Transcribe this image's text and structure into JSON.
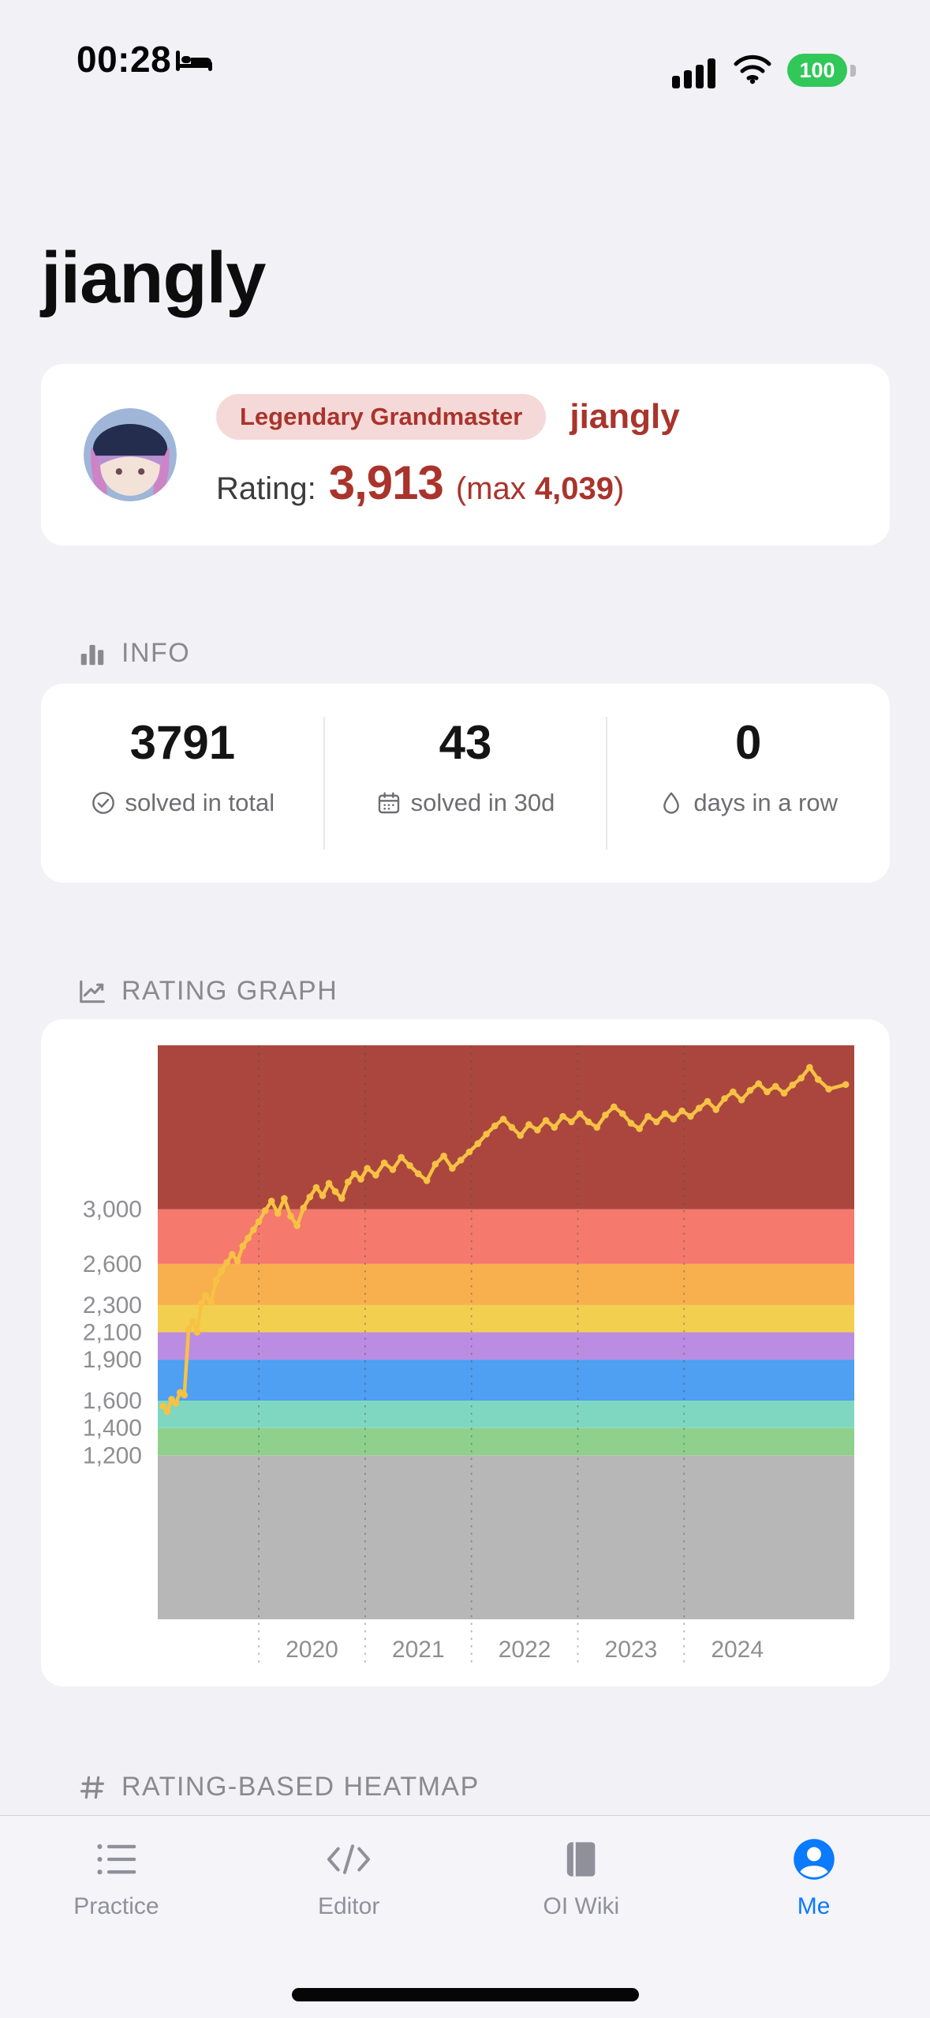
{
  "status_bar": {
    "time": "00:28",
    "battery_percent": "100"
  },
  "header": {
    "title": "jiangly"
  },
  "profile_card": {
    "badge_label": "Legendary Grandmaster",
    "handle": "jiangly",
    "rating_label": "Rating:",
    "rating_value": "3,913",
    "rating_max_prefix": "(max",
    "rating_max_value": "4,039",
    "rating_max_suffix": ")",
    "accent_color": "#a9342c",
    "badge_bg_color": "#f5d9d8"
  },
  "info": {
    "section_title": "INFO",
    "stats": [
      {
        "value": "3791",
        "label": "solved in total",
        "icon": "check-circle-icon"
      },
      {
        "value": "43",
        "label": "solved in 30d",
        "icon": "calendar-icon"
      },
      {
        "value": "0",
        "label": "days in a row",
        "icon": "droplet-icon"
      }
    ]
  },
  "rating_graph_section": {
    "title": "RATING GRAPH"
  },
  "heatmap_section": {
    "title": "RATING-BASED HEATMAP"
  },
  "chart_data": {
    "type": "line",
    "title": "RATING GRAPH",
    "series_name": "rating",
    "line_color": "#f6c244",
    "grid": "dashed-vertical",
    "legend": "none",
    "xlim": [
      2019.05,
      2025.6
    ],
    "ylim": [
      0,
      4200
    ],
    "x_ticks": [
      2020,
      2021,
      2022,
      2023,
      2024
    ],
    "x_tick_labels": [
      "2020",
      "2021",
      "2022",
      "2023",
      "2024"
    ],
    "y_ticks": [
      1200,
      1400,
      1600,
      1900,
      2100,
      2300,
      2600,
      3000
    ],
    "y_tick_labels": [
      "1,200",
      "1,400",
      "1,600",
      "1,900",
      "2,100",
      "2,300",
      "2,600",
      "3,000"
    ],
    "bands": [
      {
        "from": 0,
        "to": 1200,
        "color": "#b7b7b7"
      },
      {
        "from": 1200,
        "to": 1400,
        "color": "#8fd18c"
      },
      {
        "from": 1400,
        "to": 1600,
        "color": "#7fd7c2"
      },
      {
        "from": 1600,
        "to": 1900,
        "color": "#4f9ff2"
      },
      {
        "from": 1900,
        "to": 2100,
        "color": "#bb8de2"
      },
      {
        "from": 2100,
        "to": 2300,
        "color": "#f3cf50"
      },
      {
        "from": 2300,
        "to": 2600,
        "color": "#f8b04e"
      },
      {
        "from": 2600,
        "to": 3000,
        "color": "#f5796d"
      },
      {
        "from": 3000,
        "to": 4200,
        "color": "#ab463f"
      }
    ],
    "x": [
      2019.1,
      2019.14,
      2019.18,
      2019.22,
      2019.26,
      2019.3,
      2019.34,
      2019.38,
      2019.42,
      2019.46,
      2019.5,
      2019.55,
      2019.6,
      2019.65,
      2019.7,
      2019.75,
      2019.8,
      2019.85,
      2019.9,
      2019.95,
      2020.0,
      2020.06,
      2020.12,
      2020.18,
      2020.24,
      2020.3,
      2020.36,
      2020.42,
      2020.48,
      2020.54,
      2020.6,
      2020.66,
      2020.72,
      2020.78,
      2020.84,
      2020.9,
      2020.96,
      2021.02,
      2021.1,
      2021.18,
      2021.26,
      2021.34,
      2021.42,
      2021.5,
      2021.58,
      2021.66,
      2021.74,
      2021.82,
      2021.9,
      2021.98,
      2022.06,
      2022.14,
      2022.22,
      2022.3,
      2022.38,
      2022.46,
      2022.54,
      2022.62,
      2022.7,
      2022.78,
      2022.86,
      2022.94,
      2023.02,
      2023.1,
      2023.18,
      2023.26,
      2023.34,
      2023.42,
      2023.5,
      2023.58,
      2023.66,
      2023.74,
      2023.82,
      2023.9,
      2023.98,
      2024.06,
      2024.14,
      2024.22,
      2024.3,
      2024.38,
      2024.46,
      2024.54,
      2024.62,
      2024.7,
      2024.78,
      2024.86,
      2024.94,
      2025.02,
      2025.1,
      2025.18,
      2025.26,
      2025.36,
      2025.52
    ],
    "y": [
      1560,
      1520,
      1610,
      1580,
      1660,
      1640,
      2120,
      2180,
      2100,
      2310,
      2370,
      2320,
      2480,
      2550,
      2610,
      2670,
      2620,
      2730,
      2790,
      2850,
      2910,
      2990,
      3060,
      2970,
      3080,
      2950,
      2880,
      3010,
      3090,
      3160,
      3100,
      3190,
      3130,
      3080,
      3200,
      3260,
      3220,
      3300,
      3250,
      3340,
      3290,
      3380,
      3320,
      3260,
      3210,
      3330,
      3390,
      3300,
      3360,
      3420,
      3480,
      3550,
      3610,
      3660,
      3600,
      3540,
      3620,
      3580,
      3650,
      3600,
      3680,
      3640,
      3700,
      3640,
      3600,
      3690,
      3750,
      3700,
      3630,
      3590,
      3680,
      3640,
      3700,
      3660,
      3720,
      3680,
      3740,
      3790,
      3730,
      3810,
      3860,
      3800,
      3870,
      3920,
      3860,
      3900,
      3850,
      3910,
      3960,
      4039,
      3950,
      3880,
      3913
    ]
  },
  "tab_bar": {
    "active_color": "#0a7aff",
    "inactive_color": "#90909a",
    "items": [
      {
        "label": "Practice",
        "icon": "list-icon",
        "active": false
      },
      {
        "label": "Editor",
        "icon": "code-icon",
        "active": false
      },
      {
        "label": "OI Wiki",
        "icon": "book-icon",
        "active": false
      },
      {
        "label": "Me",
        "icon": "person-icon",
        "active": true
      }
    ]
  }
}
